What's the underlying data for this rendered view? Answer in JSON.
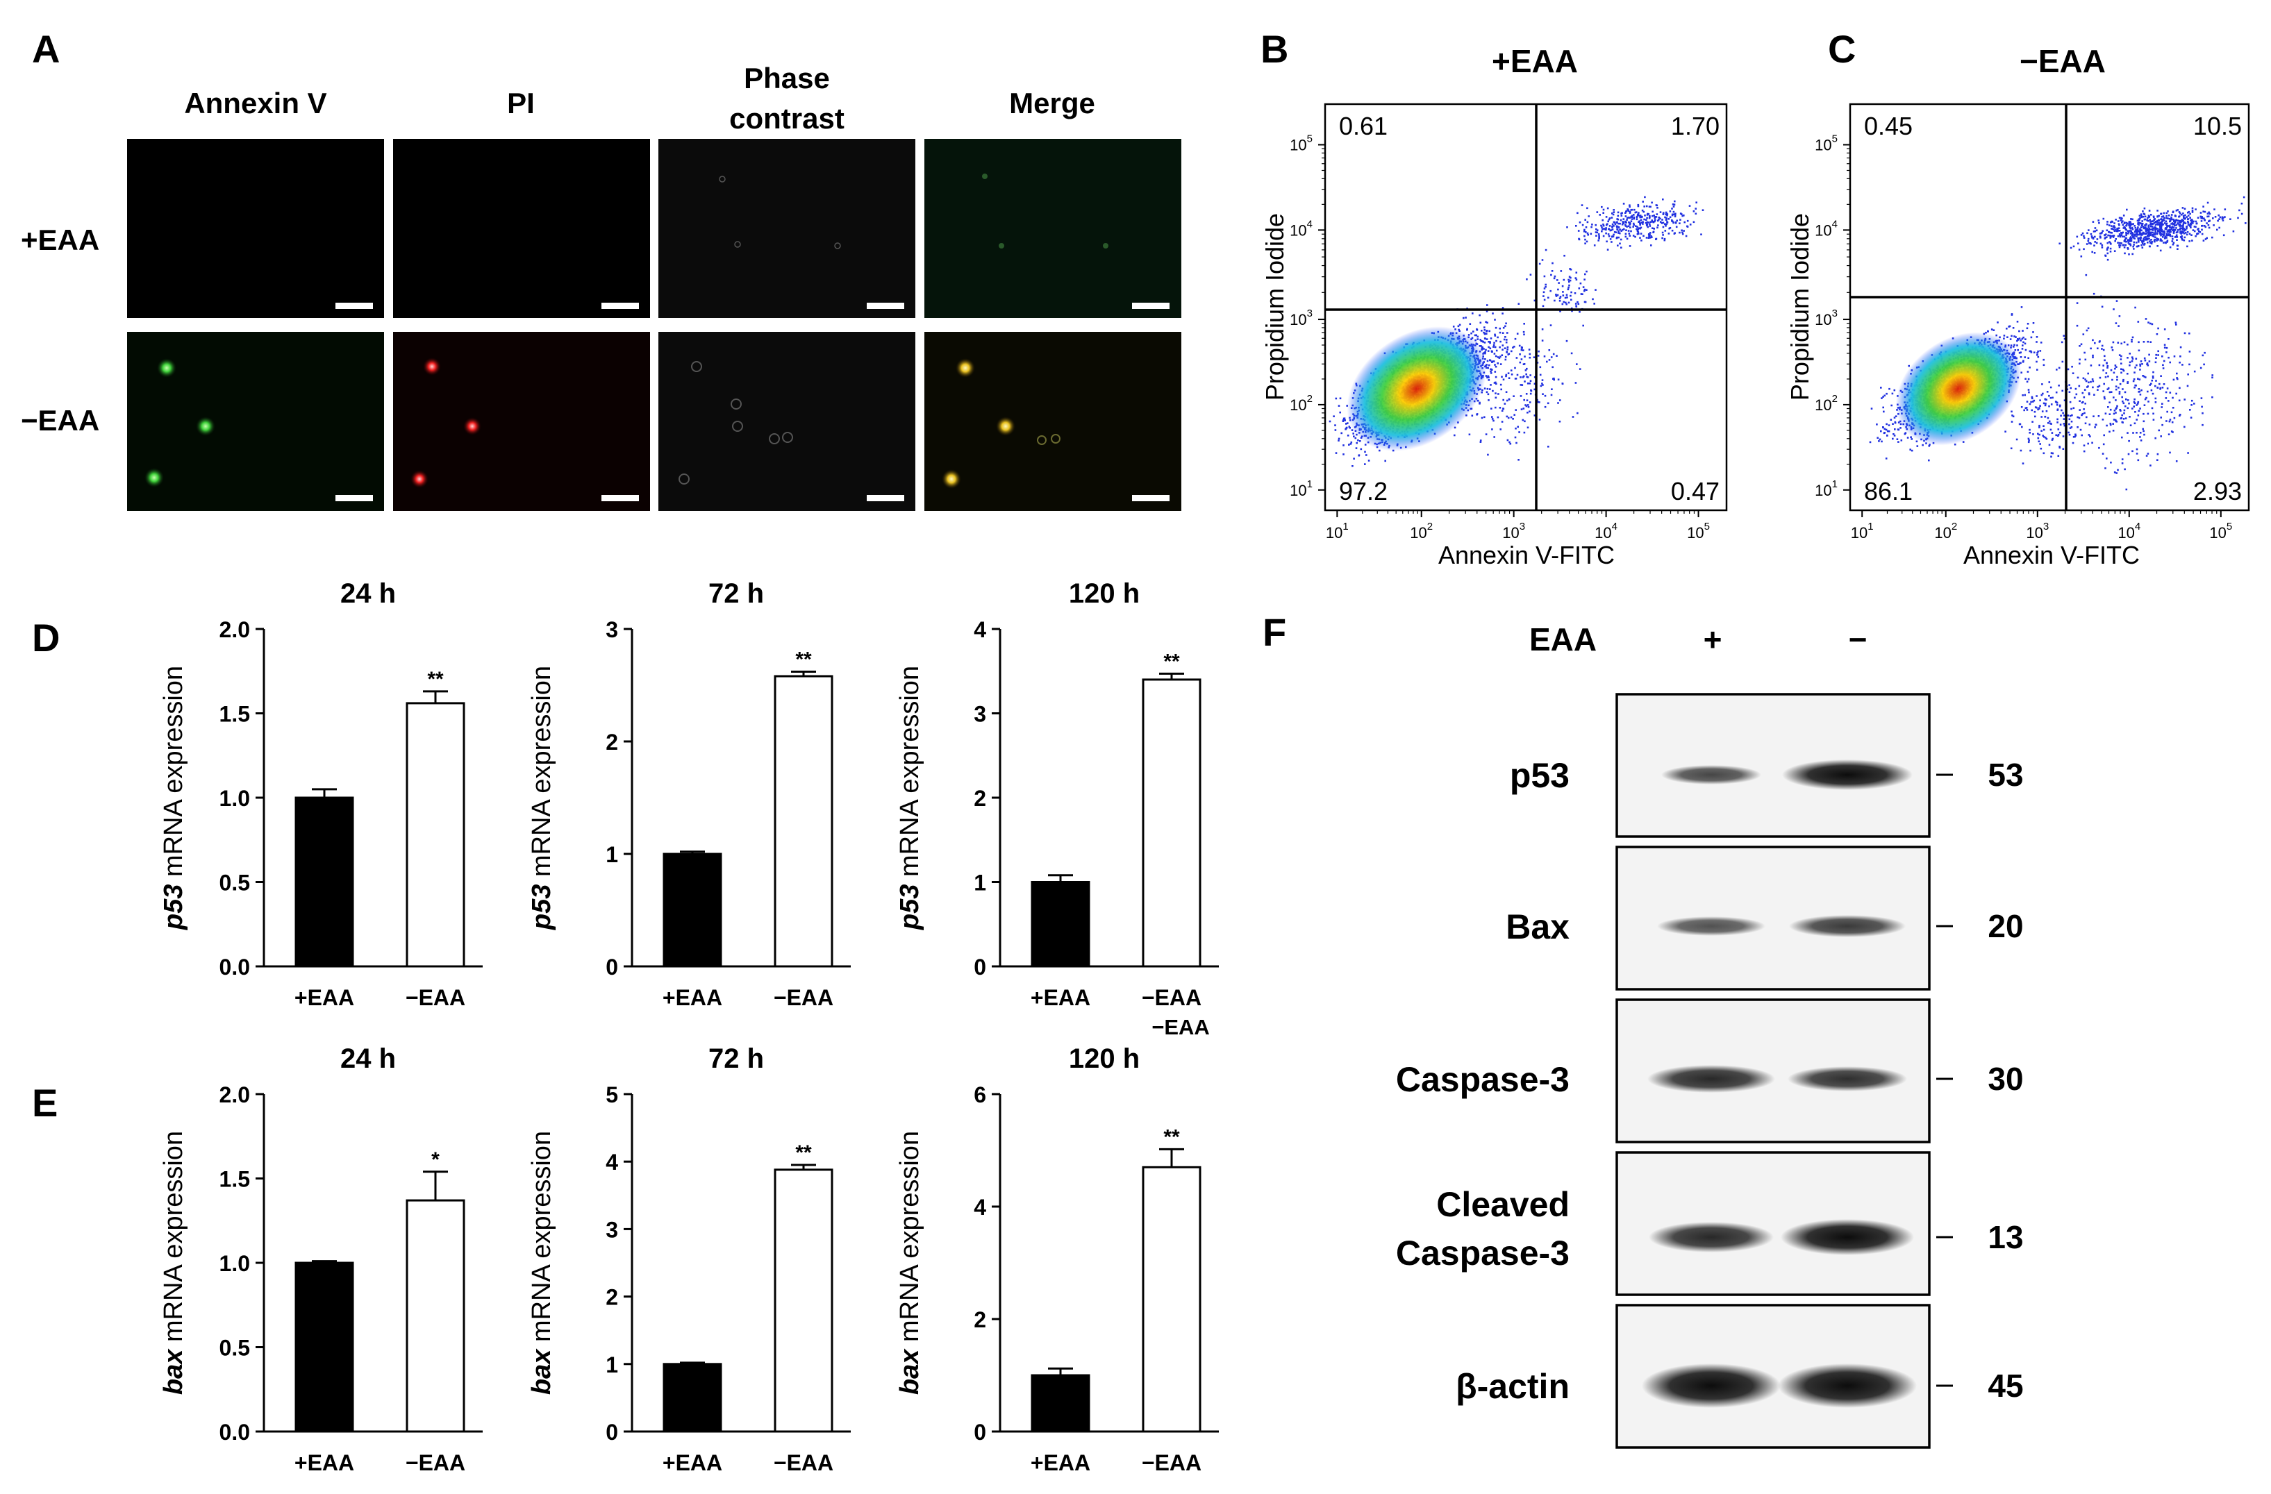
{
  "panels": {
    "A": {
      "label": "A",
      "columns": [
        "Annexin V",
        "PI",
        "Phase",
        "contrast",
        "Merge"
      ],
      "rows": [
        "+EAA",
        "−EAA"
      ]
    },
    "B": {
      "label": "B",
      "title": "+EAA",
      "q": {
        "ul": "0.61",
        "ur": "1.70",
        "ll": "97.2",
        "lr": "0.47"
      },
      "xlabel": "Annexin V-FITC",
      "ylabel": "Propidium Iodide"
    },
    "C": {
      "label": "C",
      "title": "−EAA",
      "q": {
        "ul": "0.45",
        "ur": "10.5",
        "ll": "86.1",
        "lr": "2.93"
      },
      "xlabel": "Annexin V-FITC",
      "ylabel": "Propidium Iodide"
    },
    "D": {
      "label": "D"
    },
    "E": {
      "label": "E"
    },
    "F": {
      "label": "F",
      "header": "EAA",
      "plus": "+",
      "minus": "−",
      "rows": [
        {
          "name": "p53",
          "kda": "53"
        },
        {
          "name": "Bax",
          "kda": "20"
        },
        {
          "name": "Caspase-3",
          "kda": "30"
        },
        {
          "name": "Cleaved",
          "name2": "Caspase-3",
          "kda": "13"
        },
        {
          "name": "β-actin",
          "kda": "45"
        }
      ]
    }
  },
  "flow_ticks": [
    "10",
    "10",
    "10",
    "10",
    "10"
  ],
  "flow_exps": [
    "1",
    "2",
    "3",
    "4",
    "5"
  ],
  "stray_label": "−EAA",
  "chart_data": [
    {
      "type": "bar",
      "panel": "D",
      "title": "24 h",
      "gene": "p53",
      "ylabel_rest": " mRNA expression",
      "categories": [
        "+EAA",
        "−EAA"
      ],
      "values": [
        1.0,
        1.56
      ],
      "errors": [
        0.05,
        0.07
      ],
      "sig": [
        "",
        "**"
      ],
      "ylim": [
        0,
        2.0
      ],
      "yticks": [
        "0.0",
        "0.5",
        "1.0",
        "1.5",
        "2.0"
      ]
    },
    {
      "type": "bar",
      "panel": "D",
      "title": "72 h",
      "gene": "p53",
      "ylabel_rest": " mRNA expression",
      "categories": [
        "+EAA",
        "−EAA"
      ],
      "values": [
        1.0,
        2.58
      ],
      "errors": [
        0.02,
        0.04
      ],
      "sig": [
        "",
        "**"
      ],
      "ylim": [
        0,
        3
      ],
      "yticks": [
        "0",
        "1",
        "2",
        "3"
      ]
    },
    {
      "type": "bar",
      "panel": "D",
      "title": "120 h",
      "gene": "p53",
      "ylabel_rest": " mRNA expression",
      "categories": [
        "+EAA",
        "−EAA"
      ],
      "values": [
        1.0,
        3.4
      ],
      "errors": [
        0.08,
        0.07
      ],
      "sig": [
        "",
        "**"
      ],
      "ylim": [
        0,
        4
      ],
      "yticks": [
        "0",
        "1",
        "2",
        "3",
        "4"
      ]
    },
    {
      "type": "bar",
      "panel": "E",
      "title": "24 h",
      "gene": "bax",
      "ylabel_rest": " mRNA expression",
      "categories": [
        "+EAA",
        "−EAA"
      ],
      "values": [
        1.0,
        1.37
      ],
      "errors": [
        0.01,
        0.17
      ],
      "sig": [
        "",
        "*"
      ],
      "ylim": [
        0,
        2.0
      ],
      "yticks": [
        "0.0",
        "0.5",
        "1.0",
        "1.5",
        "2.0"
      ]
    },
    {
      "type": "bar",
      "panel": "E",
      "title": "72 h",
      "gene": "bax",
      "ylabel_rest": " mRNA expression",
      "categories": [
        "+EAA",
        "−EAA"
      ],
      "values": [
        1.0,
        3.88
      ],
      "errors": [
        0.02,
        0.07
      ],
      "sig": [
        "",
        "**"
      ],
      "ylim": [
        0,
        5
      ],
      "yticks": [
        "0",
        "1",
        "2",
        "3",
        "4",
        "5"
      ]
    },
    {
      "type": "bar",
      "panel": "E",
      "title": "120 h",
      "gene": "bax",
      "ylabel_rest": " mRNA expression",
      "categories": [
        "+EAA",
        "−EAA"
      ],
      "values": [
        1.0,
        4.7
      ],
      "errors": [
        0.12,
        0.32
      ],
      "sig": [
        "",
        "**"
      ],
      "ylim": [
        0,
        6
      ],
      "yticks": [
        "0",
        "2",
        "4",
        "6"
      ]
    }
  ]
}
